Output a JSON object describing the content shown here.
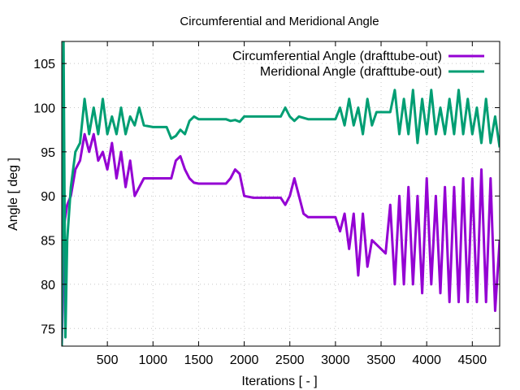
{
  "chart_data": {
    "type": "line",
    "title": "Circumferential and Meridional Angle",
    "xlabel": "Iterations [ - ]",
    "ylabel": "Angle [ deg ]",
    "xlim": [
      0,
      4800
    ],
    "ylim": [
      73,
      107.5
    ],
    "xticks": [
      500,
      1000,
      1500,
      2000,
      2500,
      3000,
      3500,
      4000,
      4500
    ],
    "yticks": [
      75,
      80,
      85,
      90,
      95,
      100,
      105
    ],
    "grid": true,
    "legend_position": "top-right",
    "colors": {
      "circumferential": "#9400d3",
      "meridional": "#009e73"
    },
    "series": [
      {
        "name": "Circumferential Angle (drafttube-out)",
        "color": "#9400d3",
        "x": [
          0,
          30,
          60,
          100,
          150,
          200,
          250,
          300,
          350,
          400,
          450,
          500,
          550,
          600,
          650,
          700,
          750,
          800,
          850,
          900,
          1000,
          1100,
          1200,
          1250,
          1300,
          1350,
          1400,
          1450,
          1500,
          1600,
          1700,
          1800,
          1850,
          1900,
          1950,
          2000,
          2100,
          2200,
          2300,
          2400,
          2450,
          2500,
          2550,
          2600,
          2650,
          2700,
          2800,
          2900,
          3000,
          3050,
          3100,
          3150,
          3200,
          3250,
          3300,
          3350,
          3400,
          3500,
          3550,
          3600,
          3650,
          3700,
          3750,
          3800,
          3850,
          3900,
          3950,
          4000,
          4050,
          4100,
          4150,
          4200,
          4250,
          4300,
          4350,
          4400,
          4450,
          4500,
          4550,
          4600,
          4650,
          4700,
          4750,
          4800
        ],
        "values": [
          73,
          87,
          89,
          90,
          93,
          94,
          97,
          95,
          97,
          94,
          95,
          93,
          96,
          92,
          95,
          91,
          94,
          90,
          91,
          92,
          92,
          92,
          92,
          94,
          94.5,
          93,
          92,
          91.5,
          91.4,
          91.4,
          91.4,
          91.4,
          92,
          93,
          92.5,
          90,
          89.8,
          89.8,
          89.8,
          89.8,
          89,
          90,
          92,
          90,
          88,
          87.6,
          87.6,
          87.6,
          87.6,
          86,
          88,
          84,
          88,
          81,
          88,
          82,
          85,
          84,
          83.5,
          89,
          80,
          90,
          80,
          91,
          80,
          90,
          79,
          92,
          80,
          90,
          79,
          91,
          78,
          91,
          78,
          92,
          78,
          92,
          78,
          93,
          78,
          92,
          77,
          85
        ]
      },
      {
        "name": "Meridional Angle (drafttube-out)",
        "color": "#009e73",
        "x": [
          0,
          20,
          40,
          60,
          100,
          150,
          200,
          250,
          300,
          350,
          400,
          450,
          500,
          550,
          600,
          650,
          700,
          750,
          800,
          850,
          900,
          1000,
          1100,
          1150,
          1200,
          1250,
          1300,
          1350,
          1400,
          1450,
          1500,
          1600,
          1700,
          1800,
          1850,
          1900,
          1950,
          2000,
          2100,
          2200,
          2300,
          2400,
          2450,
          2500,
          2550,
          2600,
          2700,
          2800,
          2900,
          3000,
          3050,
          3100,
          3150,
          3200,
          3250,
          3300,
          3350,
          3400,
          3450,
          3500,
          3550,
          3600,
          3650,
          3700,
          3750,
          3800,
          3850,
          3900,
          3950,
          4000,
          4050,
          4100,
          4150,
          4200,
          4250,
          4300,
          4350,
          4400,
          4450,
          4500,
          4550,
          4600,
          4650,
          4700,
          4750,
          4800
        ],
        "values": [
          73,
          107.5,
          74,
          85,
          91,
          95,
          96,
          101,
          97,
          100,
          97,
          101,
          97,
          99,
          97,
          100,
          97,
          99,
          98,
          100,
          98,
          97.8,
          97.8,
          97.8,
          96.5,
          96.8,
          97.5,
          97,
          98.5,
          99,
          98.7,
          98.7,
          98.7,
          98.7,
          98.5,
          98.6,
          98.4,
          99,
          99,
          99,
          99,
          99,
          100,
          99,
          98.5,
          99,
          98.7,
          98.7,
          98.7,
          98.7,
          100,
          98,
          101,
          98,
          100,
          97,
          101,
          98,
          99.5,
          99.5,
          99.5,
          99.5,
          102,
          97,
          101,
          97,
          102,
          96,
          101,
          97,
          102,
          97,
          100,
          97,
          101,
          97,
          102,
          97,
          101,
          97,
          100,
          96,
          101,
          96,
          99,
          95.5
        ]
      }
    ]
  }
}
